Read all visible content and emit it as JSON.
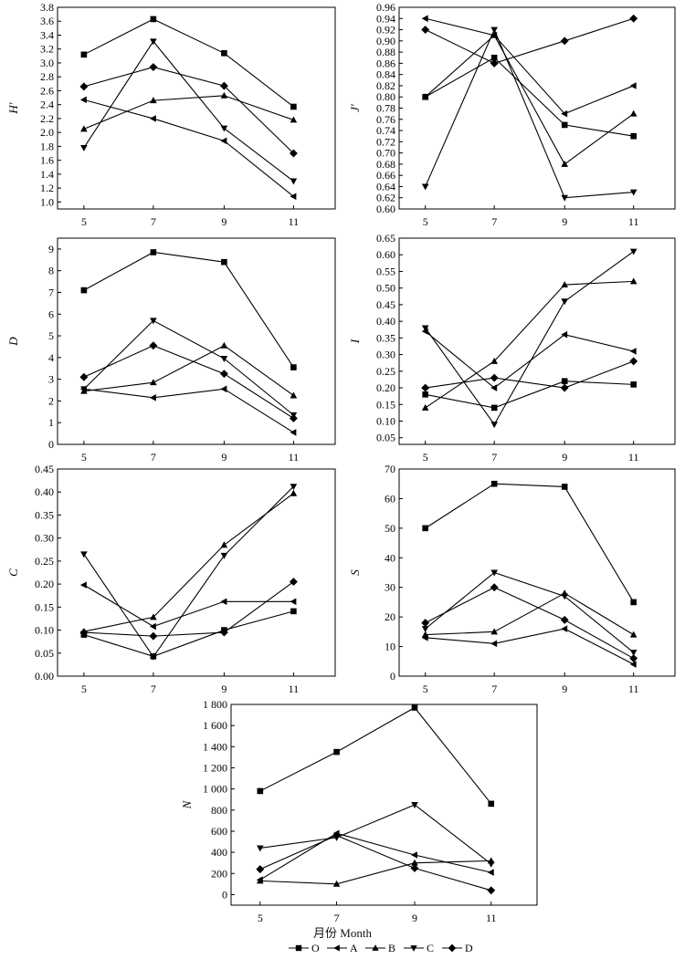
{
  "xlabel": "月份 Month",
  "legend": [
    {
      "series": "O",
      "marker": "square"
    },
    {
      "series": "A",
      "marker": "triangle-left"
    },
    {
      "series": "B",
      "marker": "triangle-up"
    },
    {
      "series": "C",
      "marker": "triangle-down"
    },
    {
      "series": "D",
      "marker": "diamond"
    }
  ],
  "chart_data": [
    {
      "type": "line",
      "ylabel": "H′",
      "categories": [
        "5",
        "7",
        "9",
        "11"
      ],
      "ylim": [
        0.9,
        3.8
      ],
      "yticks": [
        "1.0",
        "1.2",
        "1.4",
        "1.6",
        "1.8",
        "2.0",
        "2.2",
        "2.4",
        "2.6",
        "2.8",
        "3.0",
        "3.2",
        "3.4",
        "3.6",
        "3.8"
      ],
      "ytick_values": [
        1.0,
        1.2,
        1.4,
        1.6,
        1.8,
        2.0,
        2.2,
        2.4,
        2.6,
        2.8,
        3.0,
        3.2,
        3.4,
        3.6,
        3.8
      ],
      "series": [
        {
          "name": "O",
          "values": [
            3.12,
            3.63,
            3.14,
            2.37
          ]
        },
        {
          "name": "A",
          "values": [
            2.47,
            2.2,
            1.88,
            1.08
          ]
        },
        {
          "name": "B",
          "values": [
            2.05,
            2.46,
            2.53,
            2.18
          ]
        },
        {
          "name": "C",
          "values": [
            1.78,
            3.31,
            2.06,
            1.3
          ]
        },
        {
          "name": "D",
          "values": [
            2.66,
            2.94,
            2.67,
            1.7
          ]
        }
      ]
    },
    {
      "type": "line",
      "ylabel": "J′",
      "categories": [
        "5",
        "7",
        "9",
        "11"
      ],
      "ylim": [
        0.6,
        0.96
      ],
      "yticks": [
        "0.60",
        "0.62",
        "0.64",
        "0.66",
        "0.68",
        "0.70",
        "0.72",
        "0.74",
        "0.76",
        "0.78",
        "0.80",
        "0.82",
        "0.84",
        "0.86",
        "0.88",
        "0.90",
        "0.92",
        "0.94",
        "0.96"
      ],
      "ytick_values": [
        0.6,
        0.62,
        0.64,
        0.66,
        0.68,
        0.7,
        0.72,
        0.74,
        0.76,
        0.78,
        0.8,
        0.82,
        0.84,
        0.86,
        0.88,
        0.9,
        0.92,
        0.94,
        0.96
      ],
      "series": [
        {
          "name": "O",
          "values": [
            0.8,
            0.87,
            0.75,
            0.73
          ]
        },
        {
          "name": "A",
          "values": [
            0.94,
            0.91,
            0.77,
            0.82
          ]
        },
        {
          "name": "B",
          "values": [
            0.8,
            0.91,
            0.68,
            0.77
          ]
        },
        {
          "name": "C",
          "values": [
            0.64,
            0.92,
            0.62,
            0.63
          ]
        },
        {
          "name": "D",
          "values": [
            0.92,
            0.86,
            0.9,
            0.94
          ]
        }
      ]
    },
    {
      "type": "line",
      "ylabel": "D",
      "categories": [
        "5",
        "7",
        "9",
        "11"
      ],
      "ylim": [
        0,
        9.5
      ],
      "yticks": [
        "0",
        "1",
        "2",
        "3",
        "4",
        "5",
        "6",
        "7",
        "8",
        "9"
      ],
      "ytick_values": [
        0,
        1,
        2,
        3,
        4,
        5,
        6,
        7,
        8,
        9
      ],
      "series": [
        {
          "name": "O",
          "values": [
            7.1,
            8.85,
            8.4,
            3.55
          ]
        },
        {
          "name": "A",
          "values": [
            2.55,
            2.15,
            2.55,
            0.55
          ]
        },
        {
          "name": "B",
          "values": [
            2.45,
            2.85,
            4.55,
            2.25
          ]
        },
        {
          "name": "C",
          "values": [
            2.55,
            5.7,
            3.95,
            1.35
          ]
        },
        {
          "name": "D",
          "values": [
            3.1,
            4.55,
            3.25,
            1.2
          ]
        }
      ]
    },
    {
      "type": "line",
      "ylabel": "I",
      "categories": [
        "5",
        "7",
        "9",
        "11"
      ],
      "ylim": [
        0.03,
        0.65
      ],
      "yticks": [
        "0.05",
        "0.10",
        "0.15",
        "0.20",
        "0.25",
        "0.30",
        "0.35",
        "0.40",
        "0.45",
        "0.50",
        "0.55",
        "0.60",
        "0.65"
      ],
      "ytick_values": [
        0.05,
        0.1,
        0.15,
        0.2,
        0.25,
        0.3,
        0.35,
        0.4,
        0.45,
        0.5,
        0.55,
        0.6,
        0.65
      ],
      "series": [
        {
          "name": "O",
          "values": [
            0.18,
            0.14,
            0.22,
            0.21
          ]
        },
        {
          "name": "A",
          "values": [
            0.37,
            0.2,
            0.36,
            0.31
          ]
        },
        {
          "name": "B",
          "values": [
            0.14,
            0.28,
            0.51,
            0.52
          ]
        },
        {
          "name": "C",
          "values": [
            0.38,
            0.09,
            0.46,
            0.61
          ]
        },
        {
          "name": "D",
          "values": [
            0.2,
            0.23,
            0.2,
            0.28
          ]
        }
      ]
    },
    {
      "type": "line",
      "ylabel": "C",
      "categories": [
        "5",
        "7",
        "9",
        "11"
      ],
      "ylim": [
        0,
        0.45
      ],
      "yticks": [
        "0.00",
        "0.05",
        "0.10",
        "0.15",
        "0.20",
        "0.25",
        "0.30",
        "0.35",
        "0.40",
        "0.45"
      ],
      "ytick_values": [
        0,
        0.05,
        0.1,
        0.15,
        0.2,
        0.25,
        0.3,
        0.35,
        0.4,
        0.45
      ],
      "series": [
        {
          "name": "O",
          "values": [
            0.09,
            0.043,
            0.1,
            0.141
          ]
        },
        {
          "name": "A",
          "values": [
            0.198,
            0.108,
            0.162,
            0.162
          ]
        },
        {
          "name": "B",
          "values": [
            0.097,
            0.128,
            0.285,
            0.397
          ]
        },
        {
          "name": "C",
          "values": [
            0.265,
            0.042,
            0.262,
            0.412
          ]
        },
        {
          "name": "D",
          "values": [
            0.095,
            0.087,
            0.095,
            0.205
          ]
        }
      ]
    },
    {
      "type": "line",
      "ylabel": "S",
      "categories": [
        "5",
        "7",
        "9",
        "11"
      ],
      "ylim": [
        0,
        70
      ],
      "yticks": [
        "0",
        "10",
        "20",
        "30",
        "40",
        "50",
        "60",
        "70"
      ],
      "ytick_values": [
        0,
        10,
        20,
        30,
        40,
        50,
        60,
        70
      ],
      "series": [
        {
          "name": "O",
          "values": [
            50,
            65,
            64,
            25
          ]
        },
        {
          "name": "A",
          "values": [
            13,
            11,
            16,
            4
          ]
        },
        {
          "name": "B",
          "values": [
            14,
            15,
            28,
            14
          ]
        },
        {
          "name": "C",
          "values": [
            16,
            35,
            27,
            8
          ]
        },
        {
          "name": "D",
          "values": [
            18,
            30,
            19,
            6
          ]
        }
      ]
    },
    {
      "type": "line",
      "ylabel": "N",
      "categories": [
        "5",
        "7",
        "9",
        "11"
      ],
      "ylim": [
        -100,
        1800
      ],
      "yticks": [
        "0",
        "200",
        "400",
        "600",
        "800",
        "1 000",
        "1 200",
        "1 400",
        "1 600",
        "1 800"
      ],
      "ytick_values": [
        0,
        200,
        400,
        600,
        800,
        1000,
        1200,
        1400,
        1600,
        1800
      ],
      "series": [
        {
          "name": "O",
          "values": [
            980,
            1350,
            1770,
            860
          ]
        },
        {
          "name": "A",
          "values": [
            140,
            580,
            375,
            210
          ]
        },
        {
          "name": "B",
          "values": [
            130,
            100,
            300,
            320
          ]
        },
        {
          "name": "C",
          "values": [
            440,
            540,
            850,
            290
          ]
        },
        {
          "name": "D",
          "values": [
            240,
            560,
            250,
            40
          ]
        }
      ]
    }
  ]
}
